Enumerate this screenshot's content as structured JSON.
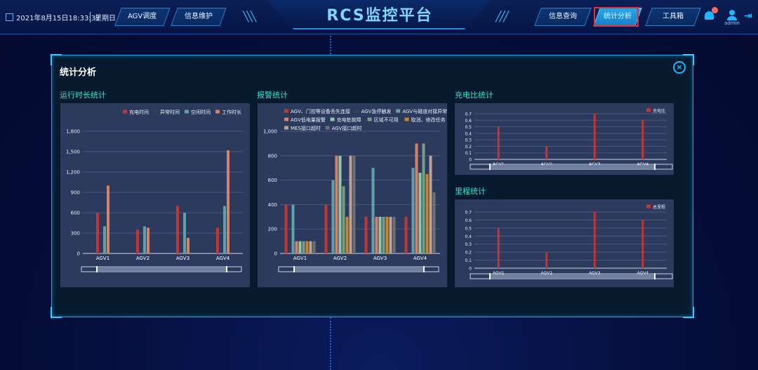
{
  "header": {
    "datetime": "2021年8月15日18:33:37",
    "weekday": "星期日",
    "title": "RCS监控平台",
    "nav_left": [
      "AGV调度",
      "信息维护"
    ],
    "nav_right": [
      "信息查询",
      "统计分析",
      "工具箱"
    ],
    "active_nav": "统计分析",
    "user": "admin",
    "icons": [
      "calendar-icon",
      "bell-icon",
      "user-icon",
      "logout-icon"
    ],
    "accent_color": "#1fb8ff"
  },
  "panel": {
    "title": "统计分析",
    "close_icon": "close-icon",
    "sections": {
      "runtime": "运行时长统计",
      "alarm": "报警统计",
      "charge": "充电比统计",
      "mileage": "里程统计"
    }
  },
  "chart_data": [
    {
      "id": "runtime",
      "type": "bar",
      "categories": [
        "AGV1",
        "AGV2",
        "AGV3",
        "AGV4"
      ],
      "series": [
        {
          "name": "充电时间",
          "color": "#c23531",
          "values": [
            600,
            350,
            700,
            380
          ]
        },
        {
          "name": "异常时间",
          "color": "#2f4554",
          "values": [
            0,
            0,
            0,
            0
          ]
        },
        {
          "name": "空闲时间",
          "color": "#61a0a8",
          "values": [
            400,
            400,
            600,
            700
          ]
        },
        {
          "name": "工作时长",
          "color": "#d48265",
          "values": [
            1000,
            380,
            230,
            1520
          ]
        }
      ],
      "ylim": [
        0,
        1800
      ],
      "yticks": [
        0,
        300,
        600,
        900,
        1200,
        1500,
        1800
      ],
      "ytick_labels": [
        "0",
        "300",
        "600",
        "900",
        "1,200",
        "1,500",
        "1,800"
      ],
      "legend": "top-right",
      "grid": true
    },
    {
      "id": "alarm",
      "type": "bar",
      "categories": [
        "AGV1",
        "AGV2",
        "AGV3",
        "AGV4"
      ],
      "series": [
        {
          "name": "AGV、门控等设备丢失连接",
          "color": "#c23531",
          "values": [
            400,
            400,
            300,
            300
          ]
        },
        {
          "name": "AGV急停触发",
          "color": "#2f4554",
          "values": [
            0,
            0,
            0,
            0
          ]
        },
        {
          "name": "AGV与磁道对接异常",
          "color": "#61a0a8",
          "values": [
            400,
            600,
            700,
            700
          ]
        },
        {
          "name": "AGV低电量报警",
          "color": "#d48265",
          "values": [
            100,
            800,
            300,
            900
          ]
        },
        {
          "name": "充电桩故障",
          "color": "#91c7ae",
          "values": [
            100,
            800,
            300,
            660
          ]
        },
        {
          "name": "区域不可用",
          "color": "#749f83",
          "values": [
            100,
            550,
            300,
            900
          ]
        },
        {
          "name": "取消、修改任务",
          "color": "#ca8622",
          "values": [
            100,
            300,
            300,
            650
          ]
        },
        {
          "name": "MES接口超时",
          "color": "#bda29a",
          "values": [
            100,
            800,
            300,
            800
          ]
        },
        {
          "name": "AGV接口超时",
          "color": "#6e7074",
          "values": [
            100,
            800,
            300,
            500
          ]
        }
      ],
      "ylim": [
        0,
        1000
      ],
      "yticks": [
        0,
        200,
        400,
        600,
        800,
        1000
      ],
      "ytick_labels": [
        "0",
        "200",
        "400",
        "600",
        "800",
        "1,000"
      ],
      "legend": "top",
      "grid": true
    },
    {
      "id": "charge",
      "type": "bar",
      "categories": [
        "AGV1",
        "AGV2",
        "AGV3",
        "AGV4"
      ],
      "series": [
        {
          "name": "充电比",
          "color": "#c23531",
          "values": [
            0.5,
            0.2,
            0.7,
            0.6
          ]
        }
      ],
      "ylim": [
        0,
        0.7
      ],
      "yticks": [
        0,
        0.1,
        0.2,
        0.3,
        0.4,
        0.5,
        0.6,
        0.7
      ],
      "ytick_labels": [
        "0",
        "0.1",
        "0.2",
        "0.3",
        "0.4",
        "0.5",
        "0.6",
        "0.7"
      ],
      "legend": "top-right",
      "grid": true
    },
    {
      "id": "mileage",
      "type": "bar",
      "categories": [
        "AGV1",
        "AGV2",
        "AGV3",
        "AGV4"
      ],
      "series": [
        {
          "name": "总里程",
          "color": "#c23531",
          "values": [
            0.5,
            0.2,
            0.7,
            0.6
          ]
        }
      ],
      "ylim": [
        0,
        0.7
      ],
      "yticks": [
        0,
        0.1,
        0.2,
        0.3,
        0.4,
        0.5,
        0.6,
        0.7
      ],
      "ytick_labels": [
        "0",
        "0.1",
        "0.2",
        "0.3",
        "0.4",
        "0.5",
        "0.6",
        "0.7"
      ],
      "legend": "top-right",
      "grid": true
    }
  ]
}
